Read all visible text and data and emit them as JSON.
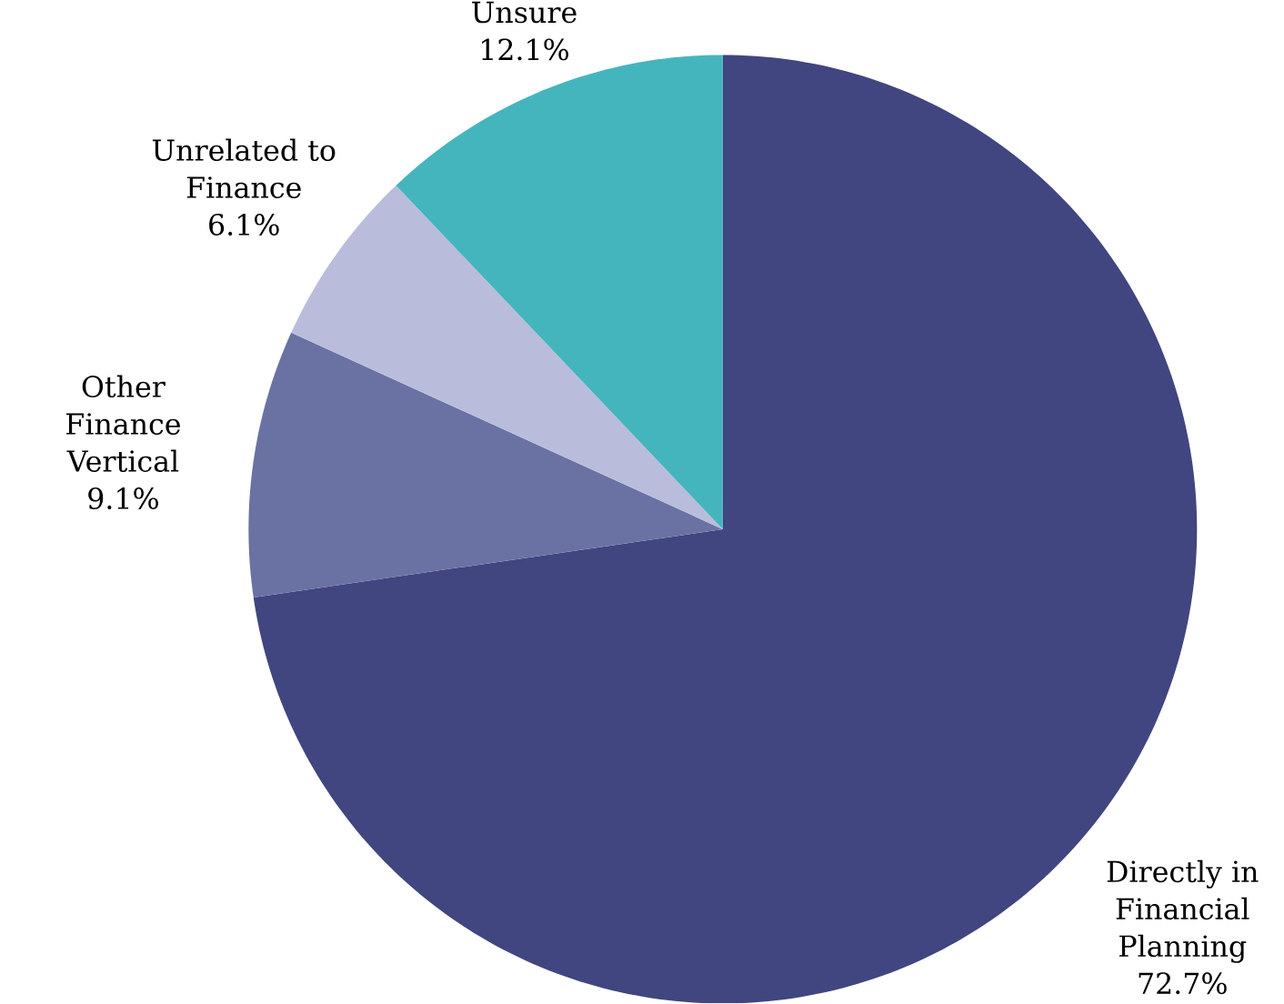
{
  "chart_data": {
    "type": "pie",
    "categories": [
      "Directly in Financial Planning",
      "Other Finance Vertical",
      "Unrelated to Finance",
      "Unsure"
    ],
    "values": [
      72.7,
      9.1,
      6.1,
      12.1
    ],
    "colors": [
      "#414580",
      "#6a72a3",
      "#babcdb",
      "#45b5bd"
    ],
    "value_labels": [
      "72.7%",
      "9.1%",
      "6.1%",
      "12.1%"
    ]
  }
}
